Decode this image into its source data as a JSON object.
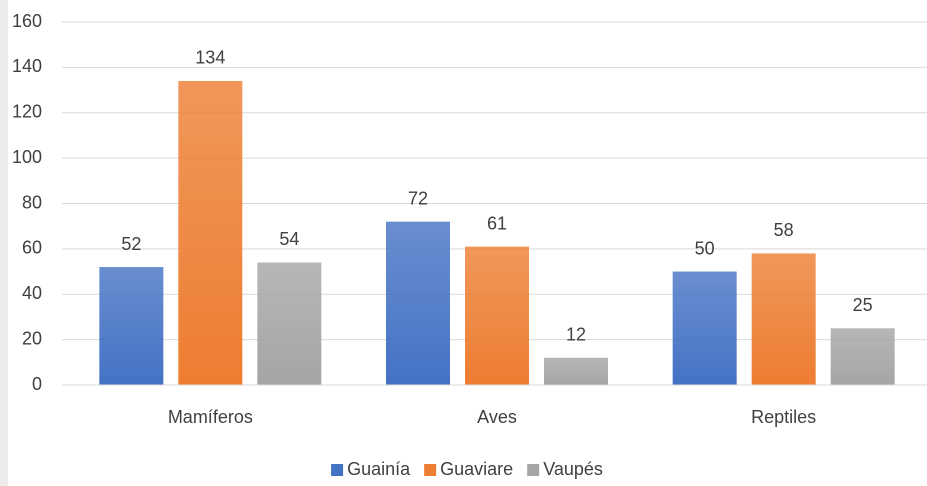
{
  "chart_data": {
    "type": "bar",
    "categories": [
      "Mamíferos",
      "Aves",
      "Reptiles"
    ],
    "series": [
      {
        "name": "Guainía",
        "color": "#4472c4",
        "values": [
          52,
          72,
          50
        ]
      },
      {
        "name": "Guaviare",
        "color": "#ed7d31",
        "values": [
          134,
          61,
          58
        ]
      },
      {
        "name": "Vaupés",
        "color": "#a5a5a5",
        "values": [
          54,
          12,
          25
        ]
      }
    ],
    "ylim": [
      0,
      160
    ],
    "yticks": [
      0,
      20,
      40,
      60,
      80,
      100,
      120,
      140,
      160
    ],
    "grid": true,
    "legend": "bottom"
  }
}
